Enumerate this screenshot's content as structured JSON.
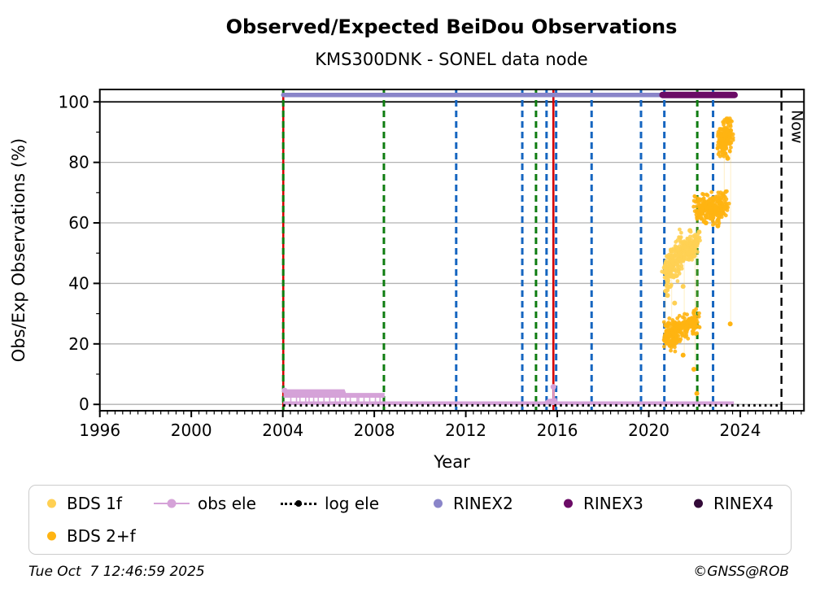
{
  "chart_data": {
    "type": "scatter",
    "title": "Observed/Expected BeiDou Observations",
    "subtitle": "KMS300DNK - SONEL data node",
    "xlabel": "Year",
    "ylabel": "Obs/Exp Observations (%)",
    "xlim": [
      1996,
      2026.78
    ],
    "ylim": [
      -2.1,
      104.1
    ],
    "xticks": [
      1996,
      2000,
      2004,
      2008,
      2012,
      2016,
      2020,
      2024
    ],
    "yticks": [
      0,
      20,
      40,
      60,
      80,
      100
    ],
    "y_minor_ticks": [
      10,
      30,
      50,
      70,
      90
    ],
    "x_minor_step_years": 0.3333,
    "grid": "horizontal-gray, solid black line at 100",
    "now": {
      "year": 2025.8,
      "label": "Now"
    },
    "rinex_bars": [
      {
        "name": "RINEX2",
        "start": 2004.02,
        "end": 2020.75,
        "value": 102.3,
        "color": "#8a85c9",
        "width": 5.5
      },
      {
        "name": "RINEX3",
        "start": 2020.6,
        "end": 2023.75,
        "value": 102.3,
        "color": "#6b0b66",
        "width": 8
      }
    ],
    "events": [
      {
        "year": 2004.02,
        "color": "#d60000",
        "style": "solid"
      },
      {
        "year": 2004.02,
        "color": "#0e7c10",
        "style": "dashed"
      },
      {
        "year": 2008.42,
        "color": "#0e7c10",
        "style": "dashed"
      },
      {
        "year": 2011.58,
        "color": "#1565c0",
        "style": "dashed"
      },
      {
        "year": 2014.47,
        "color": "#1565c0",
        "style": "dashed"
      },
      {
        "year": 2015.07,
        "color": "#0e7c10",
        "style": "dashed"
      },
      {
        "year": 2015.53,
        "color": "#1565c0",
        "style": "dashed"
      },
      {
        "year": 2015.83,
        "color": "#d60000",
        "style": "solid"
      },
      {
        "year": 2015.95,
        "color": "#1565c0",
        "style": "dashed"
      },
      {
        "year": 2017.5,
        "color": "#1565c0",
        "style": "dashed"
      },
      {
        "year": 2019.66,
        "color": "#1565c0",
        "style": "dashed"
      },
      {
        "year": 2020.68,
        "color": "#1565c0",
        "style": "dashed"
      },
      {
        "year": 2022.12,
        "color": "#0e7c10",
        "style": "dashed"
      },
      {
        "year": 2022.81,
        "color": "#1565c0",
        "style": "dashed"
      }
    ],
    "obs_ele": {
      "color": "#d5a2d8",
      "baseline": {
        "start": 2004.02,
        "end": 2023.72,
        "value": 0.4
      },
      "band": {
        "x0": 2004.03,
        "x1": 2008.45,
        "step_x": 2006.7,
        "top1": 5.0,
        "top2": 3.8,
        "bottom": 2.2
      },
      "spikes": [
        2004.35,
        2004.6,
        2004.75,
        2005.0,
        2005.15,
        2005.35,
        2005.55,
        2005.8,
        2006.05,
        2006.3,
        2006.5,
        2006.75,
        2006.95,
        2007.25,
        2007.32,
        2007.55,
        2007.8,
        2008.05,
        2008.25
      ],
      "spike_2015": {
        "year": 2015.83,
        "top": 5.8
      },
      "start_marker": [
        2004.08,
        4.6
      ],
      "bump": [
        [
          2015.35,
          0.5
        ],
        [
          2015.6,
          1.8
        ],
        [
          2015.97,
          2.1
        ],
        [
          2016.02,
          0.5
        ]
      ]
    },
    "log_ele": {
      "start": 2004.02,
      "end": 2025.78,
      "value": 0,
      "color": "#000000"
    },
    "bds": {
      "colors": {
        "BDS 1f": "#ffd053",
        "BDS 2+f": "#ffb412"
      },
      "clusters": [
        {
          "series": "BDS 2+f",
          "x0": 2023.08,
          "y0": 86.5,
          "x1": 2023.62,
          "y1": 89.5,
          "sx": 0.07,
          "sy": 2.8,
          "n": 170,
          "vmin": 82.0,
          "vmax": 94.5
        },
        {
          "series": "BDS 2+f",
          "x0": 2022.08,
          "y0": 64.0,
          "x1": 2023.35,
          "y1": 65.5,
          "sx": 0.07,
          "sy": 2.4,
          "n": 280,
          "vmin": 58.5,
          "vmax": 71.0
        },
        {
          "series": "BDS 1f",
          "x0": 2020.7,
          "y0": 43.0,
          "x1": 2021.5,
          "y1": 50.5,
          "sx": 0.07,
          "sy": 3.0,
          "n": 220,
          "vmin": 35.5,
          "vmax": 58.0
        },
        {
          "series": "BDS 1f",
          "x0": 2021.5,
          "y0": 51.0,
          "x1": 2022.16,
          "y1": 53.5,
          "sx": 0.06,
          "sy": 2.0,
          "n": 130,
          "vmin": 44.0,
          "vmax": 58.0
        },
        {
          "series": "BDS 2+f",
          "x0": 2020.7,
          "y0": 22.5,
          "x1": 2021.4,
          "y1": 24.5,
          "sx": 0.07,
          "sy": 2.2,
          "n": 170,
          "vmin": 16.5,
          "vmax": 31.0
        },
        {
          "series": "BDS 2+f",
          "x0": 2021.4,
          "y0": 26.0,
          "x1": 2022.12,
          "y1": 27.0,
          "sx": 0.06,
          "sy": 1.8,
          "n": 110,
          "vmin": 18.0,
          "vmax": 31.5
        }
      ],
      "outliers": [
        {
          "series": "BDS 2+f",
          "points": [
            [
              2023.56,
              26.6
            ],
            [
              2021.5,
              16.3
            ],
            [
              2021.97,
              11.6
            ],
            [
              2022.1,
              3.6
            ],
            [
              2022.5,
              60.0
            ],
            [
              2023.02,
              59.0
            ],
            [
              2023.45,
              81.3
            ]
          ]
        },
        {
          "series": "BDS 1f",
          "points": [
            [
              2020.75,
              37.5
            ],
            [
              2020.82,
              36.0
            ],
            [
              2021.13,
              33.5
            ],
            [
              2021.5,
              39.0
            ],
            [
              2022.2,
              57.0
            ],
            [
              2021.8,
              57.5
            ]
          ]
        }
      ],
      "connectors": [
        [
          2023.58,
          90.0,
          26.6
        ],
        [
          2023.3,
          88.0,
          64.0
        ],
        [
          2022.12,
          65.0,
          27.0
        ],
        [
          2021.0,
          50.5,
          23.0
        ],
        [
          2021.55,
          52.0,
          16.5
        ],
        [
          2020.72,
          44.0,
          22.0
        ],
        [
          2022.02,
          54.0,
          11.6
        ]
      ]
    }
  },
  "legend": {
    "items": [
      {
        "label": "BDS 1f",
        "marker": "dot",
        "color": "#ffd053"
      },
      {
        "label": "obs ele",
        "marker": "line-dot",
        "color": "#d5a2d8"
      },
      {
        "label": "log ele",
        "marker": "dotted-line-dot",
        "color": "#000000"
      },
      {
        "label": "RINEX2",
        "marker": "dot",
        "color": "#8a85c9"
      },
      {
        "label": "RINEX3",
        "marker": "dot",
        "color": "#6b0b66"
      },
      {
        "label": "RINEX4",
        "marker": "dot",
        "color": "#330a38"
      },
      {
        "label": "BDS 2+f",
        "marker": "dot",
        "color": "#ffb412"
      }
    ]
  },
  "footer": {
    "timestamp": "Tue Oct  7 12:46:59 2025",
    "copyright": "©GNSS@ROB"
  }
}
